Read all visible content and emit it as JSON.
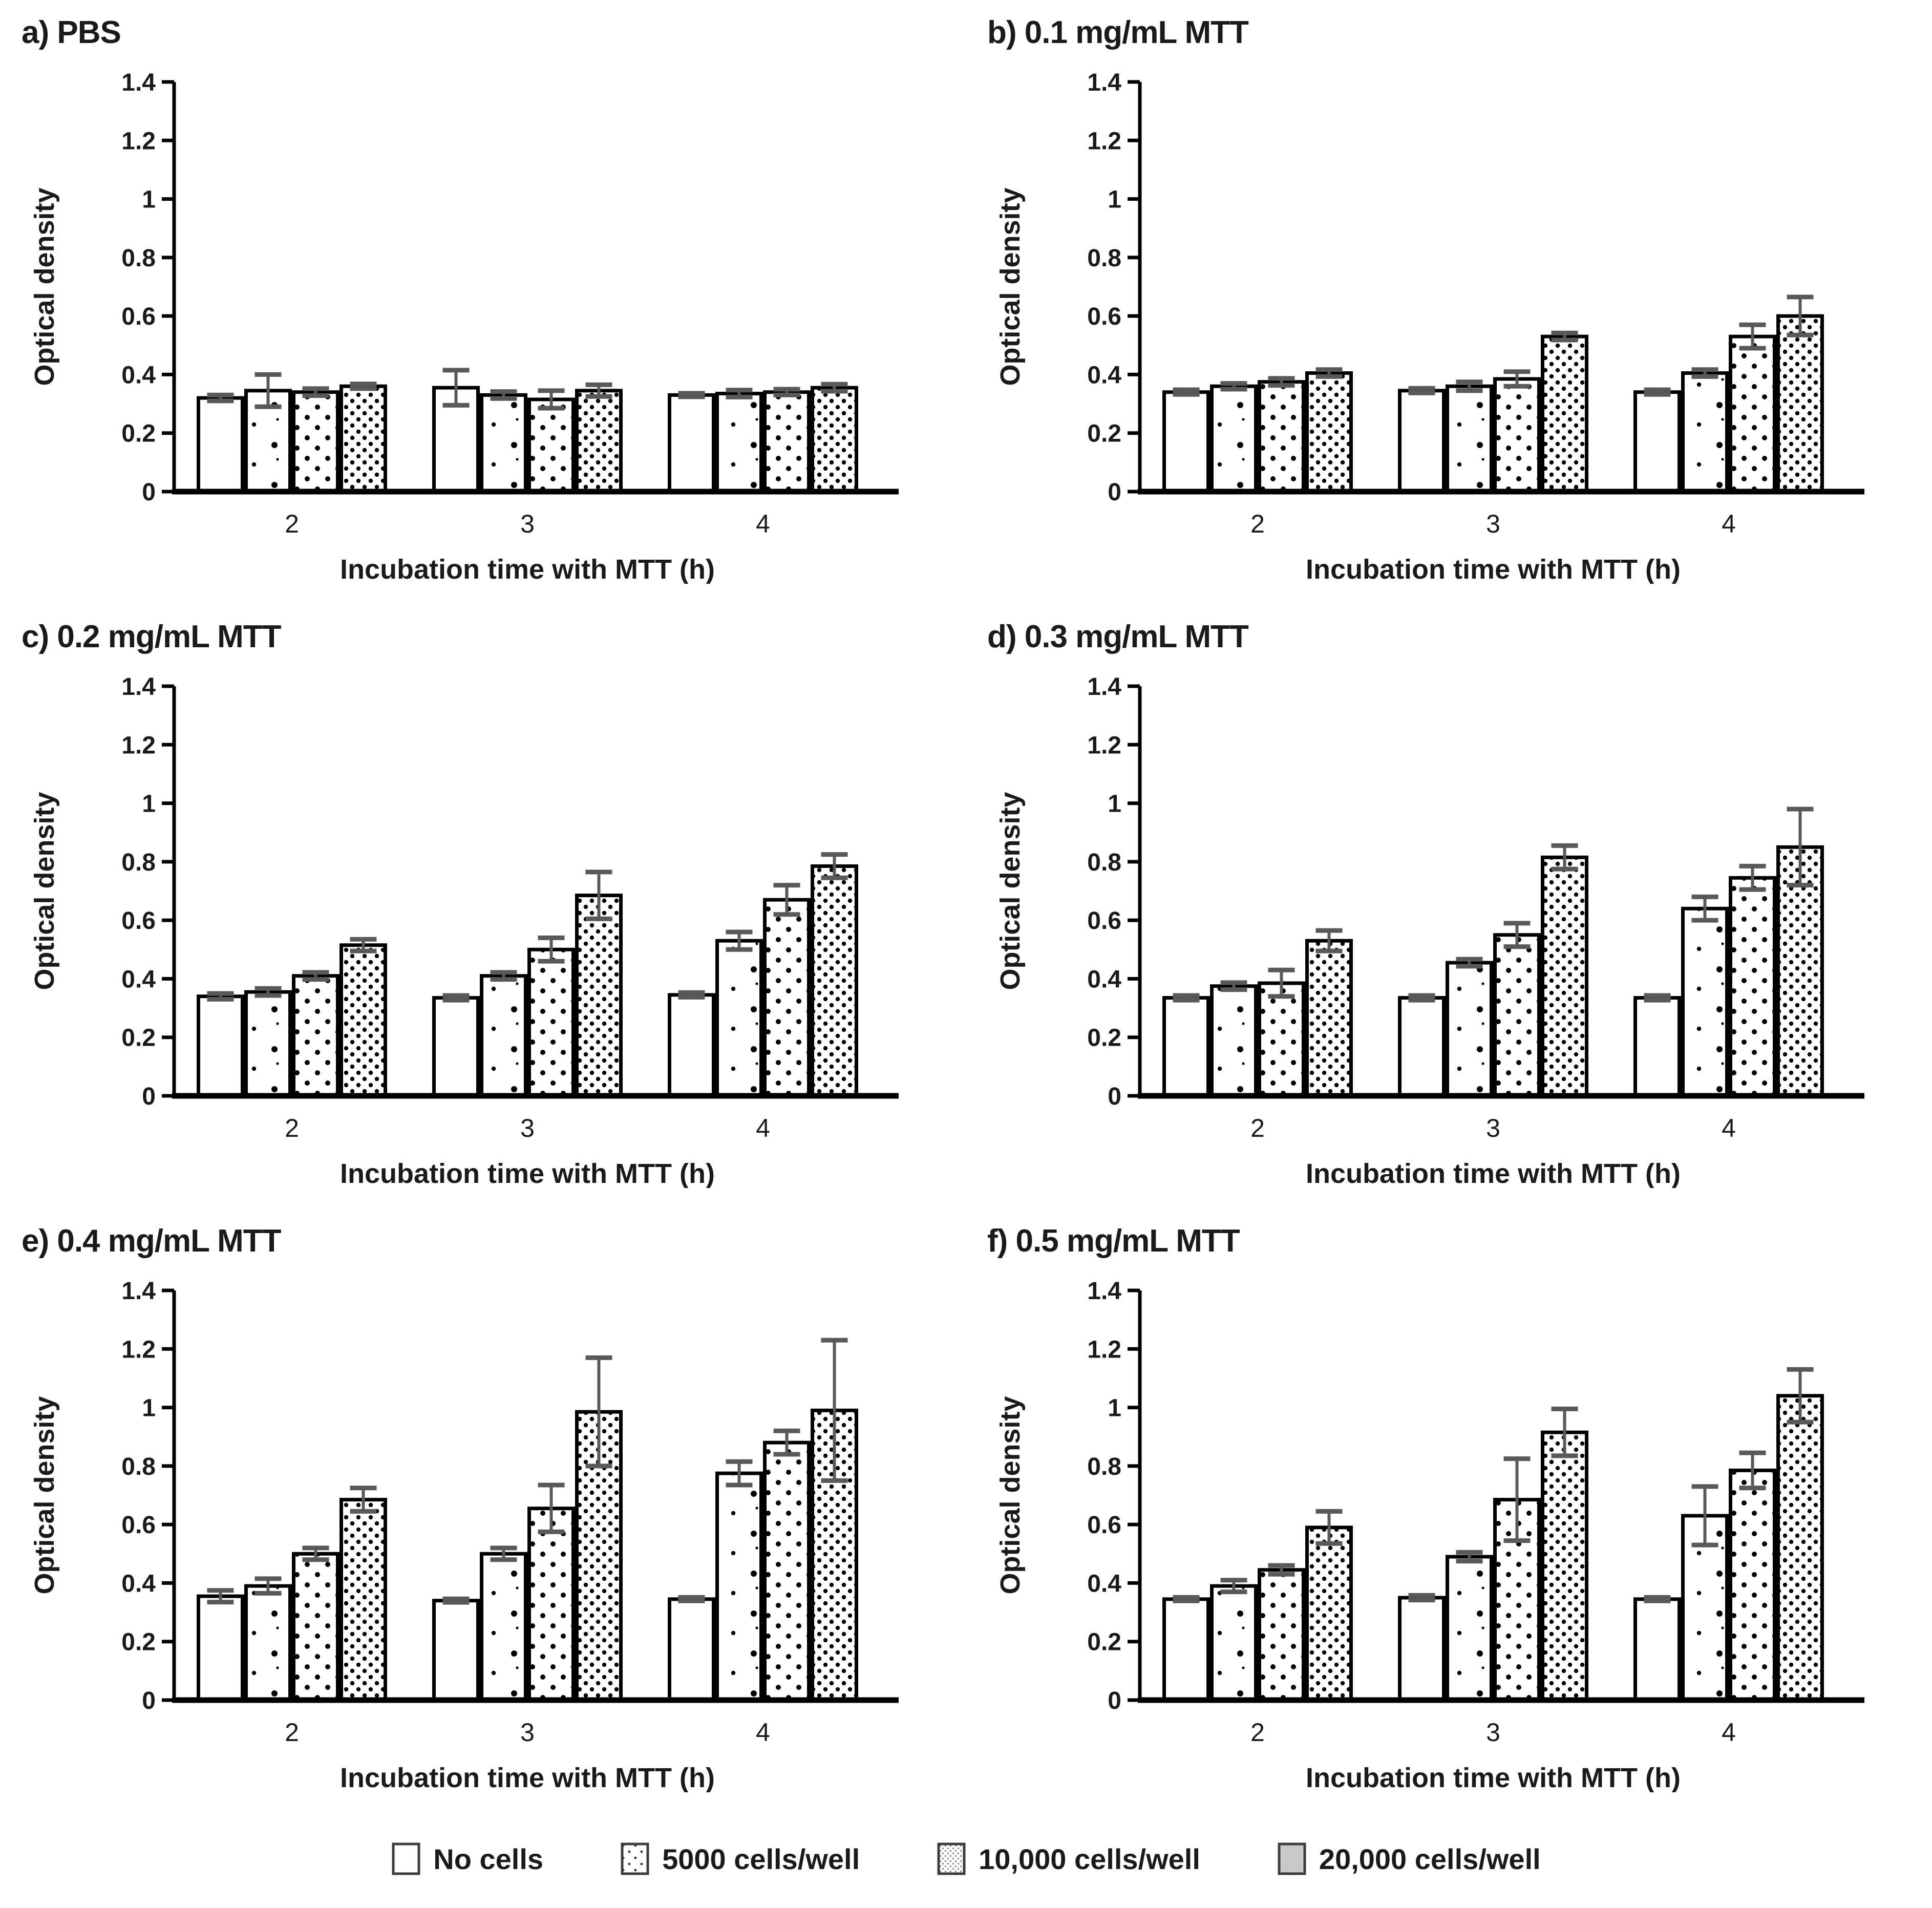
{
  "figure": {
    "background": "#ffffff"
  },
  "colors": {
    "bar_stroke": "#000000",
    "axis": "#000000",
    "error_bar": "#595959",
    "legend_gray": "#c9c9c9",
    "text": "#1a1a1a"
  },
  "axes": {
    "ylabel": "Optical density",
    "xlabel": "Incubation time with MTT (h)",
    "ylim": [
      0,
      1.4
    ],
    "ytick_step": 0.2,
    "yticks": [
      "0",
      "0.2",
      "0.4",
      "0.6",
      "0.8",
      "1",
      "1.2",
      "1.4"
    ],
    "categories": [
      "2",
      "3",
      "4"
    ],
    "grid": false,
    "legend_position": "bottom"
  },
  "series_meta": [
    {
      "name": "No cells",
      "pattern": "none"
    },
    {
      "name": "5000 cells/well",
      "pattern": "dots-sparse"
    },
    {
      "name": "10,000 cells/well",
      "pattern": "dots-medium"
    },
    {
      "name": "20,000 cells/well",
      "pattern": "dots-dense"
    }
  ],
  "chart_data": [
    {
      "type": "bar",
      "title": "a) PBS",
      "xlabel": "Incubation time with MTT (h)",
      "ylabel": "Optical density",
      "ylim": [
        0,
        1.4
      ],
      "categories": [
        "2",
        "3",
        "4"
      ],
      "series": [
        {
          "name": "No cells",
          "values": [
            0.32,
            0.355,
            0.33
          ],
          "errors": [
            0.01,
            0.06,
            0.006
          ]
        },
        {
          "name": "5000 cells/well",
          "values": [
            0.345,
            0.33,
            0.335
          ],
          "errors": [
            0.055,
            0.012,
            0.012
          ]
        },
        {
          "name": "10,000 cells/well",
          "values": [
            0.34,
            0.315,
            0.34
          ],
          "errors": [
            0.012,
            0.03,
            0.01
          ]
        },
        {
          "name": "20,000 cells/well",
          "values": [
            0.36,
            0.345,
            0.355
          ],
          "errors": [
            0.008,
            0.02,
            0.012
          ]
        }
      ]
    },
    {
      "type": "bar",
      "title": "b) 0.1 mg/mL MTT",
      "xlabel": "Incubation time with MTT (h)",
      "ylabel": "Optical density",
      "ylim": [
        0,
        1.4
      ],
      "categories": [
        "2",
        "3",
        "4"
      ],
      "series": [
        {
          "name": "No cells",
          "values": [
            0.34,
            0.345,
            0.34
          ],
          "errors": [
            0.008,
            0.008,
            0.008
          ]
        },
        {
          "name": "5000 cells/well",
          "values": [
            0.36,
            0.36,
            0.405
          ],
          "errors": [
            0.01,
            0.015,
            0.012
          ]
        },
        {
          "name": "10,000 cells/well",
          "values": [
            0.375,
            0.385,
            0.53
          ],
          "errors": [
            0.012,
            0.025,
            0.04
          ]
        },
        {
          "name": "20,000 cells/well",
          "values": [
            0.405,
            0.53,
            0.6
          ],
          "errors": [
            0.012,
            0.012,
            0.065
          ]
        }
      ]
    },
    {
      "type": "bar",
      "title": "c) 0.2 mg/mL MTT",
      "xlabel": "Incubation time with MTT (h)",
      "ylabel": "Optical density",
      "ylim": [
        0,
        1.4
      ],
      "categories": [
        "2",
        "3",
        "4"
      ],
      "series": [
        {
          "name": "No cells",
          "values": [
            0.34,
            0.335,
            0.345
          ],
          "errors": [
            0.01,
            0.008,
            0.008
          ]
        },
        {
          "name": "5000 cells/well",
          "values": [
            0.355,
            0.41,
            0.53
          ],
          "errors": [
            0.012,
            0.012,
            0.03
          ]
        },
        {
          "name": "10,000 cells/well",
          "values": [
            0.41,
            0.5,
            0.67
          ],
          "errors": [
            0.012,
            0.04,
            0.05
          ]
        },
        {
          "name": "20,000 cells/well",
          "values": [
            0.515,
            0.685,
            0.785
          ],
          "errors": [
            0.02,
            0.08,
            0.04
          ]
        }
      ]
    },
    {
      "type": "bar",
      "title": "d) 0.3 mg/mL MTT",
      "xlabel": "Incubation time with MTT (h)",
      "ylabel": "Optical density",
      "ylim": [
        0,
        1.4
      ],
      "categories": [
        "2",
        "3",
        "4"
      ],
      "series": [
        {
          "name": "No cells",
          "values": [
            0.335,
            0.335,
            0.335
          ],
          "errors": [
            0.008,
            0.008,
            0.008
          ]
        },
        {
          "name": "5000 cells/well",
          "values": [
            0.375,
            0.455,
            0.64
          ],
          "errors": [
            0.012,
            0.012,
            0.04
          ]
        },
        {
          "name": "10,000 cells/well",
          "values": [
            0.385,
            0.55,
            0.745
          ],
          "errors": [
            0.045,
            0.04,
            0.04
          ]
        },
        {
          "name": "20,000 cells/well",
          "values": [
            0.53,
            0.815,
            0.85
          ],
          "errors": [
            0.035,
            0.04,
            0.13
          ]
        }
      ]
    },
    {
      "type": "bar",
      "title": "e) 0.4 mg/mL MTT",
      "xlabel": "Incubation time with MTT (h)",
      "ylabel": "Optical density",
      "ylim": [
        0,
        1.4
      ],
      "categories": [
        "2",
        "3",
        "4"
      ],
      "series": [
        {
          "name": "No cells",
          "values": [
            0.355,
            0.34,
            0.345
          ],
          "errors": [
            0.02,
            0.006,
            0.006
          ]
        },
        {
          "name": "5000 cells/well",
          "values": [
            0.39,
            0.5,
            0.775
          ],
          "errors": [
            0.025,
            0.02,
            0.04
          ]
        },
        {
          "name": "10,000 cells/well",
          "values": [
            0.5,
            0.655,
            0.88
          ],
          "errors": [
            0.02,
            0.08,
            0.04
          ]
        },
        {
          "name": "20,000 cells/well",
          "values": [
            0.685,
            0.985,
            0.99
          ],
          "errors": [
            0.04,
            0.185,
            0.24
          ]
        }
      ]
    },
    {
      "type": "bar",
      "title": "f) 0.5 mg/mL MTT",
      "xlabel": "Incubation time with MTT (h)",
      "ylabel": "Optical density",
      "ylim": [
        0,
        1.4
      ],
      "categories": [
        "2",
        "3",
        "4"
      ],
      "series": [
        {
          "name": "No cells",
          "values": [
            0.345,
            0.35,
            0.345
          ],
          "errors": [
            0.006,
            0.008,
            0.006
          ]
        },
        {
          "name": "5000 cells/well",
          "values": [
            0.39,
            0.49,
            0.63
          ],
          "errors": [
            0.02,
            0.015,
            0.1
          ]
        },
        {
          "name": "10,000 cells/well",
          "values": [
            0.445,
            0.685,
            0.785
          ],
          "errors": [
            0.015,
            0.14,
            0.06
          ]
        },
        {
          "name": "20,000 cells/well",
          "values": [
            0.59,
            0.915,
            1.04
          ],
          "errors": [
            0.055,
            0.08,
            0.09
          ]
        }
      ]
    }
  ],
  "legend": {
    "items": [
      {
        "label": "No cells",
        "swatch": "plain"
      },
      {
        "label": "5000 cells/well",
        "swatch": "dots-sparse"
      },
      {
        "label": "10,000 cells/well",
        "swatch": "dots-fine"
      },
      {
        "label": "20,000 cells/well",
        "swatch": "gray"
      }
    ]
  }
}
